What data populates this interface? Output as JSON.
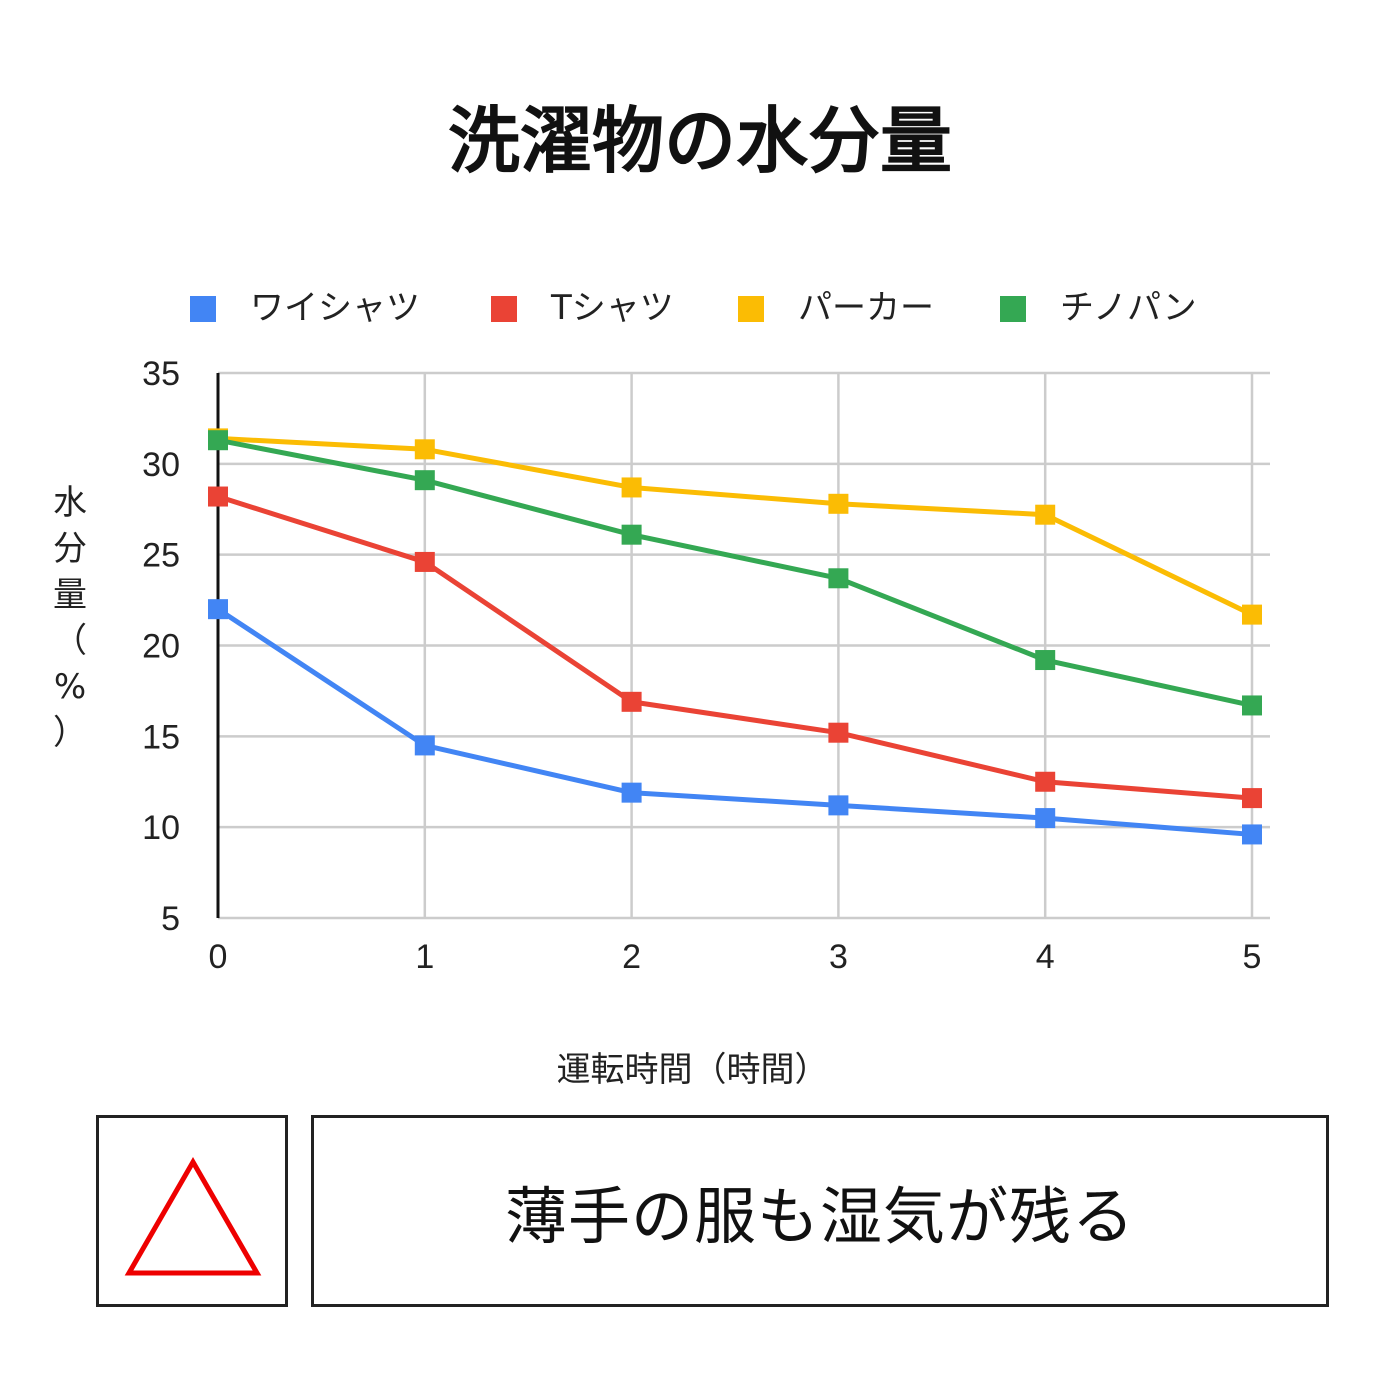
{
  "title": "洗濯物の水分量",
  "chart_data": {
    "type": "line",
    "title": "洗濯物の水分量",
    "xlabel": "運転時間（時間）",
    "ylabel": "水分量（%）",
    "x": [
      0,
      1,
      2,
      3,
      4,
      5
    ],
    "xlim": [
      0,
      5
    ],
    "ylim": [
      5,
      35
    ],
    "yticks": [
      5,
      10,
      15,
      20,
      25,
      30,
      35
    ],
    "grid": true,
    "legend_position": "top",
    "series": [
      {
        "name": "ワイシャツ",
        "color": "#4285F4",
        "values": [
          22.0,
          14.5,
          11.9,
          11.2,
          10.5,
          9.6
        ]
      },
      {
        "name": "Tシャツ",
        "color": "#EA4335",
        "values": [
          28.2,
          24.6,
          16.9,
          15.2,
          12.5,
          11.6
        ]
      },
      {
        "name": "パーカー",
        "color": "#FBBC04",
        "values": [
          31.4,
          30.8,
          28.7,
          27.8,
          27.2,
          21.7
        ]
      },
      {
        "name": "チノパン",
        "color": "#34A853",
        "values": [
          31.3,
          29.1,
          26.1,
          23.7,
          19.2,
          16.7
        ]
      }
    ]
  },
  "verdict": {
    "symbol": "triangle-icon",
    "symbol_color": "#EE0000",
    "text": "薄手の服も湿気が残る"
  }
}
